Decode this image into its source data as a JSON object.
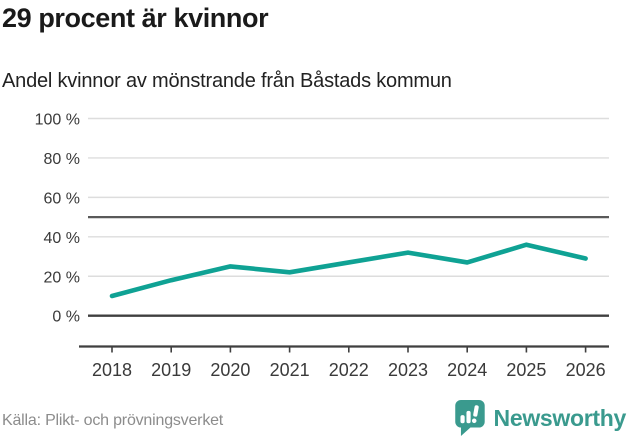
{
  "header": {
    "title": "29 procent är kvinnor",
    "subtitle": "Andel kvinnor av mönstrande från Båstads kommun"
  },
  "footer": {
    "source": "Källa: Plikt- och prövningsverket",
    "brand": "Newsworthy",
    "brand_icon": "speech-bubble-bar-chart-icon"
  },
  "colors": {
    "line": "#0fa294",
    "brand": "#3a9a8e",
    "grid_light": "#dddddd",
    "axis_dark": "#3f3f3f",
    "reference": "#595959",
    "tick_label": "#3a3a3a"
  },
  "chart_data": {
    "type": "line",
    "title": "29 procent är kvinnor",
    "subtitle": "Andel kvinnor av mönstrande från Båstads kommun",
    "categories": [
      "2018",
      "2019",
      "2020",
      "2021",
      "2022",
      "2023",
      "2024",
      "2025",
      "2026"
    ],
    "series": [
      {
        "name": "Andel kvinnor av mönstrande",
        "values": [
          10,
          18,
          25,
          22,
          27,
          32,
          27,
          36,
          29
        ]
      }
    ],
    "unit": "%",
    "ylim": [
      0,
      100
    ],
    "yticks": [
      0,
      20,
      40,
      60,
      80,
      100
    ],
    "ytick_labels": [
      "0 %",
      "20 %",
      "40 %",
      "60 %",
      "80 %",
      "100 %"
    ],
    "reference_line": 50,
    "grid": true,
    "legend": false,
    "latest_value": 29,
    "source": "Källa: Plikt- och prövningsverket"
  }
}
